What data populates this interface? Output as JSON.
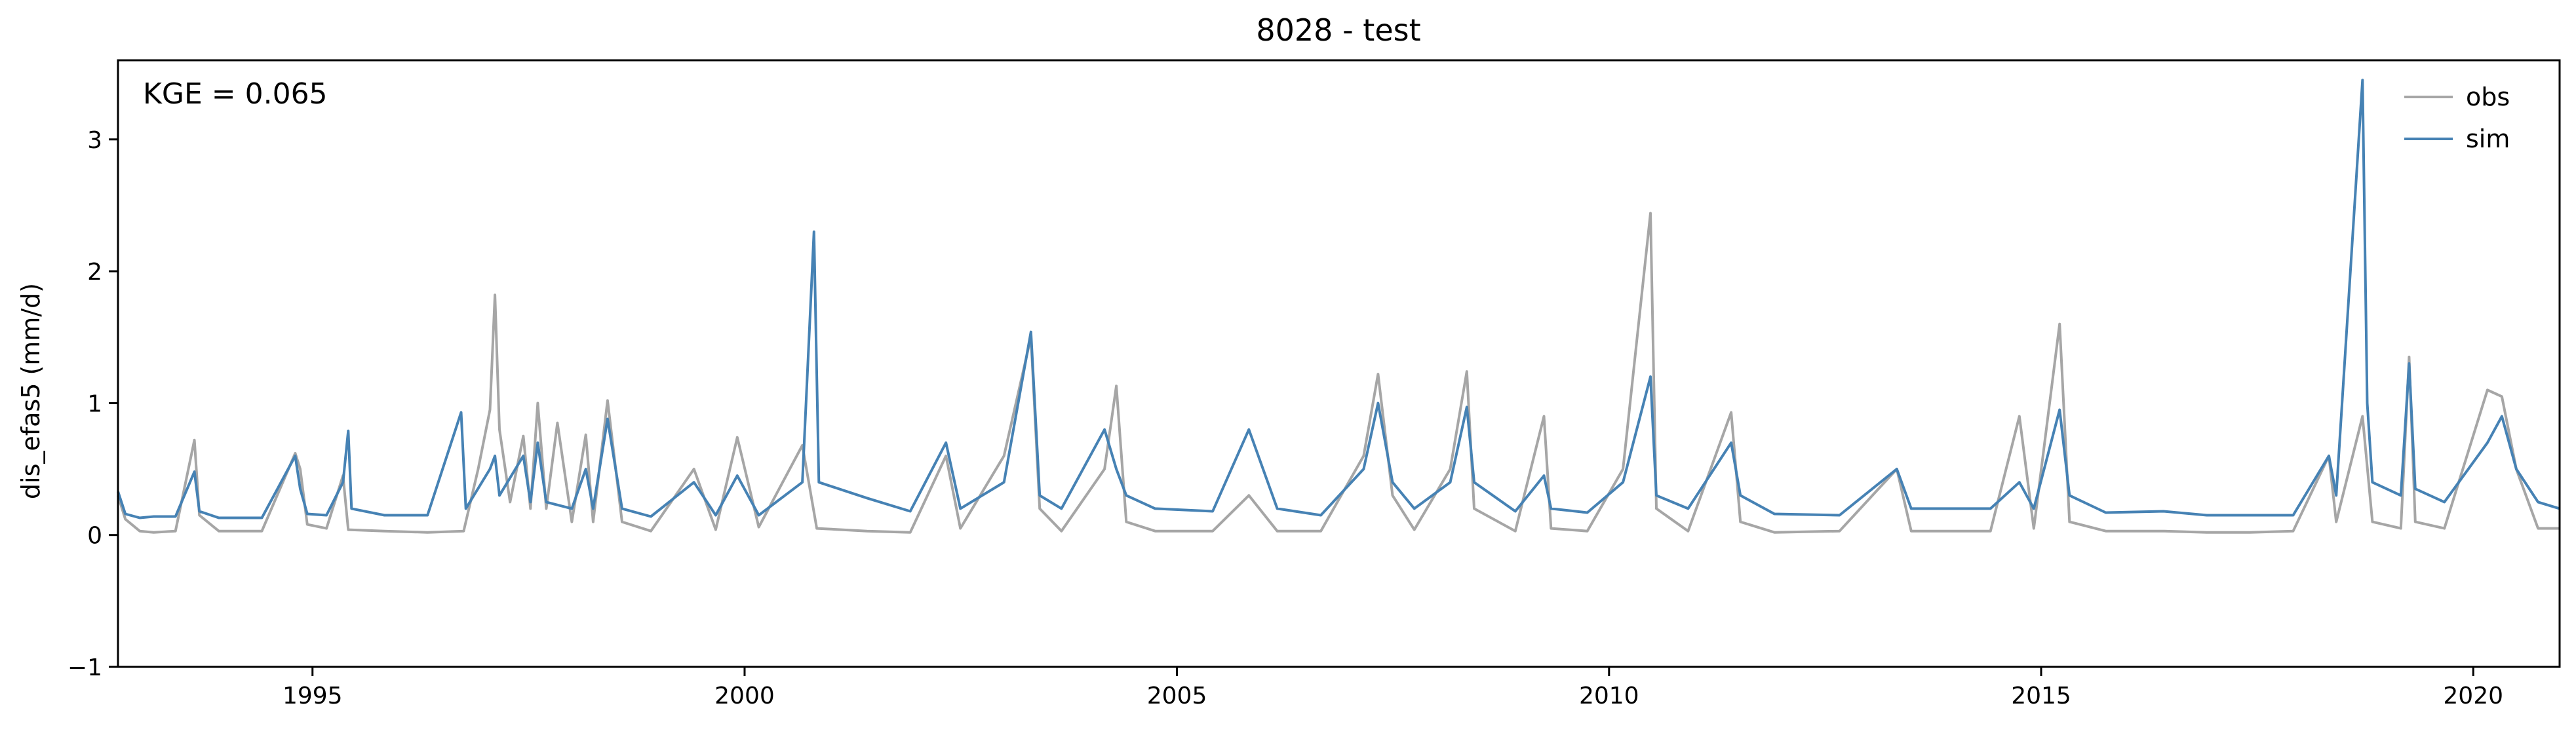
{
  "chart_data": {
    "type": "line",
    "title": "8028 - test",
    "xlabel": "",
    "ylabel": "dis_efas5 (mm/d)",
    "xlim": [
      "1992-10-01",
      "2020-12-31"
    ],
    "ylim": [
      -1,
      3.6
    ],
    "xticks": [
      {
        "date": "1995-01-01",
        "label": "1995"
      },
      {
        "date": "2000-01-01",
        "label": "2000"
      },
      {
        "date": "2005-01-01",
        "label": "2005"
      },
      {
        "date": "2010-01-01",
        "label": "2010"
      },
      {
        "date": "2015-01-01",
        "label": "2015"
      },
      {
        "date": "2020-01-01",
        "label": "2020"
      }
    ],
    "yticks": [
      {
        "value": -1,
        "label": "−1"
      },
      {
        "value": 0,
        "label": "0"
      },
      {
        "value": 1,
        "label": "1"
      },
      {
        "value": 2,
        "label": "2"
      },
      {
        "value": 3,
        "label": "3"
      }
    ],
    "grid": false,
    "legend_position": "top-right",
    "annotation": "KGE = 0.065",
    "series": [
      {
        "name": "obs",
        "color": "#a6a6a6",
        "points": [
          [
            "1992-10-01",
            0.3
          ],
          [
            "1992-11-01",
            0.12
          ],
          [
            "1993-01-01",
            0.03
          ],
          [
            "1993-03-01",
            0.02
          ],
          [
            "1993-06-01",
            0.03
          ],
          [
            "1993-08-20",
            0.72
          ],
          [
            "1993-09-10",
            0.15
          ],
          [
            "1993-12-01",
            0.03
          ],
          [
            "1994-06-01",
            0.03
          ],
          [
            "1994-10-20",
            0.62
          ],
          [
            "1994-11-10",
            0.5
          ],
          [
            "1994-12-10",
            0.08
          ],
          [
            "1995-03-01",
            0.05
          ],
          [
            "1995-05-10",
            0.45
          ],
          [
            "1995-06-01",
            0.04
          ],
          [
            "1995-11-01",
            0.03
          ],
          [
            "1996-05-01",
            0.02
          ],
          [
            "1996-10-01",
            0.03
          ],
          [
            "1996-12-01",
            0.5
          ],
          [
            "1997-01-20",
            0.95
          ],
          [
            "1997-02-10",
            1.82
          ],
          [
            "1997-03-01",
            0.8
          ],
          [
            "1997-04-15",
            0.25
          ],
          [
            "1997-06-10",
            0.75
          ],
          [
            "1997-07-10",
            0.2
          ],
          [
            "1997-08-10",
            1.0
          ],
          [
            "1997-09-15",
            0.2
          ],
          [
            "1997-11-01",
            0.85
          ],
          [
            "1998-01-01",
            0.1
          ],
          [
            "1998-03-01",
            0.76
          ],
          [
            "1998-04-01",
            0.1
          ],
          [
            "1998-06-01",
            1.02
          ],
          [
            "1998-08-01",
            0.1
          ],
          [
            "1998-12-01",
            0.03
          ],
          [
            "1999-06-01",
            0.5
          ],
          [
            "1999-09-01",
            0.04
          ],
          [
            "1999-12-01",
            0.74
          ],
          [
            "2000-03-01",
            0.06
          ],
          [
            "2000-09-01",
            0.68
          ],
          [
            "2000-11-01",
            0.05
          ],
          [
            "2001-06-01",
            0.03
          ],
          [
            "2001-12-01",
            0.02
          ],
          [
            "2002-05-01",
            0.6
          ],
          [
            "2002-07-01",
            0.05
          ],
          [
            "2003-01-01",
            0.6
          ],
          [
            "2003-04-25",
            1.5
          ],
          [
            "2003-06-01",
            0.2
          ],
          [
            "2003-09-01",
            0.03
          ],
          [
            "2004-03-01",
            0.5
          ],
          [
            "2004-04-20",
            1.13
          ],
          [
            "2004-06-01",
            0.1
          ],
          [
            "2004-10-01",
            0.03
          ],
          [
            "2005-06-01",
            0.03
          ],
          [
            "2005-11-01",
            0.3
          ],
          [
            "2006-03-01",
            0.03
          ],
          [
            "2006-09-01",
            0.03
          ],
          [
            "2007-03-01",
            0.6
          ],
          [
            "2007-05-01",
            1.22
          ],
          [
            "2007-07-01",
            0.3
          ],
          [
            "2007-10-01",
            0.04
          ],
          [
            "2008-03-01",
            0.5
          ],
          [
            "2008-05-10",
            1.24
          ],
          [
            "2008-06-10",
            0.2
          ],
          [
            "2008-12-01",
            0.03
          ],
          [
            "2009-04-01",
            0.9
          ],
          [
            "2009-05-01",
            0.05
          ],
          [
            "2009-10-01",
            0.03
          ],
          [
            "2010-03-01",
            0.5
          ],
          [
            "2010-06-25",
            2.44
          ],
          [
            "2010-07-20",
            0.2
          ],
          [
            "2010-12-01",
            0.03
          ],
          [
            "2011-06-01",
            0.93
          ],
          [
            "2011-07-10",
            0.1
          ],
          [
            "2011-12-01",
            0.02
          ],
          [
            "2012-09-01",
            0.03
          ],
          [
            "2013-05-01",
            0.5
          ],
          [
            "2013-07-01",
            0.03
          ],
          [
            "2014-06-01",
            0.03
          ],
          [
            "2014-10-01",
            0.9
          ],
          [
            "2014-12-01",
            0.05
          ],
          [
            "2015-03-20",
            1.6
          ],
          [
            "2015-05-01",
            0.1
          ],
          [
            "2015-10-01",
            0.03
          ],
          [
            "2016-06-01",
            0.03
          ],
          [
            "2016-12-01",
            0.02
          ],
          [
            "2017-06-01",
            0.02
          ],
          [
            "2017-12-01",
            0.03
          ],
          [
            "2018-05-01",
            0.6
          ],
          [
            "2018-06-01",
            0.1
          ],
          [
            "2018-09-20",
            0.9
          ],
          [
            "2018-11-01",
            0.1
          ],
          [
            "2019-03-01",
            0.05
          ],
          [
            "2019-04-05",
            1.35
          ],
          [
            "2019-05-01",
            0.1
          ],
          [
            "2019-09-01",
            0.05
          ],
          [
            "2020-03-01",
            1.1
          ],
          [
            "2020-05-01",
            1.05
          ],
          [
            "2020-07-01",
            0.5
          ],
          [
            "2020-10-01",
            0.05
          ],
          [
            "2020-12-31",
            0.05
          ]
        ]
      },
      {
        "name": "sim",
        "color": "#4682b4",
        "points": [
          [
            "1992-10-01",
            0.33
          ],
          [
            "1992-11-01",
            0.16
          ],
          [
            "1993-01-01",
            0.13
          ],
          [
            "1993-03-01",
            0.14
          ],
          [
            "1993-06-01",
            0.14
          ],
          [
            "1993-08-20",
            0.48
          ],
          [
            "1993-09-10",
            0.18
          ],
          [
            "1993-12-01",
            0.13
          ],
          [
            "1994-06-01",
            0.13
          ],
          [
            "1994-10-20",
            0.6
          ],
          [
            "1994-11-10",
            0.35
          ],
          [
            "1994-12-10",
            0.16
          ],
          [
            "1995-03-01",
            0.15
          ],
          [
            "1995-05-10",
            0.4
          ],
          [
            "1995-06-01",
            0.79
          ],
          [
            "1995-06-15",
            0.2
          ],
          [
            "1995-11-01",
            0.15
          ],
          [
            "1996-05-01",
            0.15
          ],
          [
            "1996-09-20",
            0.93
          ],
          [
            "1996-10-10",
            0.2
          ],
          [
            "1997-01-20",
            0.5
          ],
          [
            "1997-02-10",
            0.6
          ],
          [
            "1997-03-01",
            0.3
          ],
          [
            "1997-06-10",
            0.6
          ],
          [
            "1997-07-10",
            0.25
          ],
          [
            "1997-08-10",
            0.7
          ],
          [
            "1997-09-15",
            0.25
          ],
          [
            "1998-01-01",
            0.2
          ],
          [
            "1998-03-01",
            0.5
          ],
          [
            "1998-04-01",
            0.2
          ],
          [
            "1998-06-01",
            0.88
          ],
          [
            "1998-08-01",
            0.2
          ],
          [
            "1998-12-01",
            0.14
          ],
          [
            "1999-06-01",
            0.4
          ],
          [
            "1999-09-01",
            0.15
          ],
          [
            "1999-12-01",
            0.45
          ],
          [
            "2000-03-01",
            0.15
          ],
          [
            "2000-09-01",
            0.4
          ],
          [
            "2000-10-20",
            2.3
          ],
          [
            "2000-11-10",
            0.4
          ],
          [
            "2001-06-01",
            0.28
          ],
          [
            "2001-12-01",
            0.18
          ],
          [
            "2002-05-01",
            0.7
          ],
          [
            "2002-07-01",
            0.2
          ],
          [
            "2003-01-01",
            0.4
          ],
          [
            "2003-04-25",
            1.54
          ],
          [
            "2003-06-01",
            0.3
          ],
          [
            "2003-09-01",
            0.2
          ],
          [
            "2004-03-01",
            0.8
          ],
          [
            "2004-04-20",
            0.5
          ],
          [
            "2004-06-01",
            0.3
          ],
          [
            "2004-10-01",
            0.2
          ],
          [
            "2005-06-01",
            0.18
          ],
          [
            "2005-11-01",
            0.8
          ],
          [
            "2006-03-01",
            0.2
          ],
          [
            "2006-09-01",
            0.15
          ],
          [
            "2007-03-01",
            0.5
          ],
          [
            "2007-05-01",
            1.0
          ],
          [
            "2007-07-01",
            0.4
          ],
          [
            "2007-10-01",
            0.2
          ],
          [
            "2008-03-01",
            0.4
          ],
          [
            "2008-05-10",
            0.97
          ],
          [
            "2008-06-10",
            0.4
          ],
          [
            "2008-12-01",
            0.18
          ],
          [
            "2009-04-01",
            0.45
          ],
          [
            "2009-05-01",
            0.2
          ],
          [
            "2009-10-01",
            0.17
          ],
          [
            "2010-03-01",
            0.4
          ],
          [
            "2010-06-25",
            1.2
          ],
          [
            "2010-07-20",
            0.3
          ],
          [
            "2010-12-01",
            0.2
          ],
          [
            "2011-06-01",
            0.7
          ],
          [
            "2011-07-10",
            0.3
          ],
          [
            "2011-12-01",
            0.16
          ],
          [
            "2012-09-01",
            0.15
          ],
          [
            "2013-05-01",
            0.5
          ],
          [
            "2013-07-01",
            0.2
          ],
          [
            "2014-06-01",
            0.2
          ],
          [
            "2014-10-01",
            0.4
          ],
          [
            "2014-12-01",
            0.2
          ],
          [
            "2015-03-20",
            0.95
          ],
          [
            "2015-05-01",
            0.3
          ],
          [
            "2015-10-01",
            0.17
          ],
          [
            "2016-06-01",
            0.18
          ],
          [
            "2016-12-01",
            0.15
          ],
          [
            "2017-06-01",
            0.15
          ],
          [
            "2017-12-01",
            0.15
          ],
          [
            "2018-05-01",
            0.6
          ],
          [
            "2018-06-01",
            0.3
          ],
          [
            "2018-09-20",
            3.45
          ],
          [
            "2018-10-10",
            1.0
          ],
          [
            "2018-11-01",
            0.4
          ],
          [
            "2019-03-01",
            0.3
          ],
          [
            "2019-04-05",
            1.3
          ],
          [
            "2019-05-01",
            0.35
          ],
          [
            "2019-09-01",
            0.25
          ],
          [
            "2020-03-01",
            0.7
          ],
          [
            "2020-05-01",
            0.9
          ],
          [
            "2020-07-01",
            0.5
          ],
          [
            "2020-10-01",
            0.25
          ],
          [
            "2020-12-31",
            0.2
          ]
        ]
      }
    ]
  }
}
